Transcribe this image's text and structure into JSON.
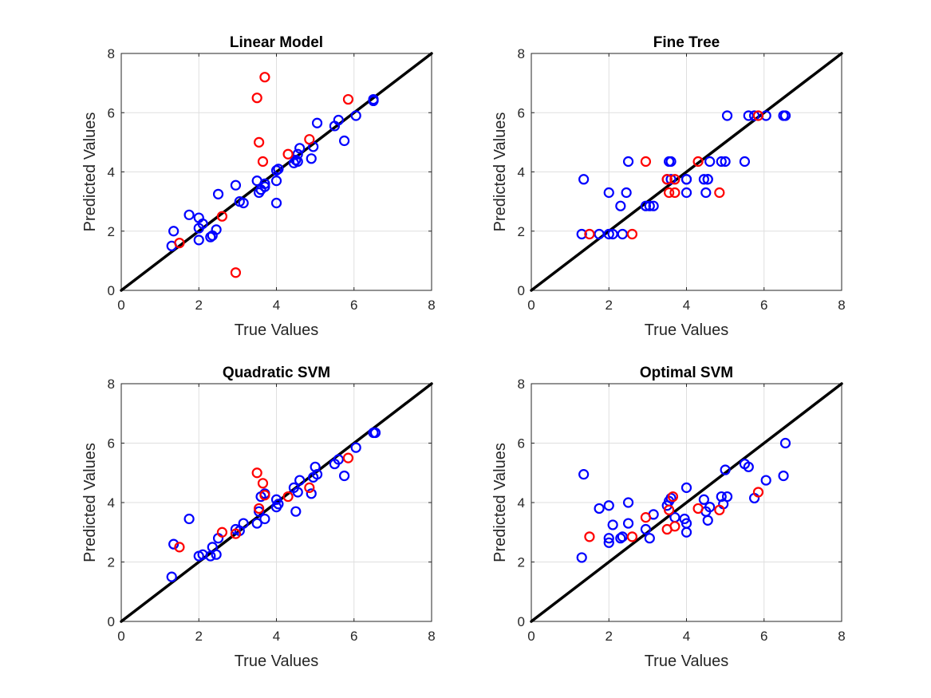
{
  "chart_data": [
    {
      "type": "scatter",
      "title": "Linear Model",
      "xlabel": "True Values",
      "ylabel": "Predicted Values",
      "xlim": [
        0,
        8
      ],
      "ylim": [
        0,
        8
      ],
      "xticks": [
        "0",
        "2",
        "4",
        "6",
        "8"
      ],
      "yticks": [
        "0",
        "2",
        "4",
        "6",
        "8"
      ],
      "grid": true,
      "reference_line": {
        "x": [
          0,
          8
        ],
        "y": [
          0,
          8
        ],
        "color": "#000000"
      },
      "series": [
        {
          "color": "#0000ff",
          "points": [
            [
              1.3,
              1.5
            ],
            [
              1.35,
              2.0
            ],
            [
              1.75,
              2.55
            ],
            [
              2.0,
              2.45
            ],
            [
              2.0,
              2.1
            ],
            [
              2.0,
              1.7
            ],
            [
              2.1,
              2.25
            ],
            [
              2.3,
              1.8
            ],
            [
              2.35,
              1.85
            ],
            [
              2.45,
              2.05
            ],
            [
              2.5,
              3.25
            ],
            [
              2.95,
              3.55
            ],
            [
              3.05,
              3.0
            ],
            [
              3.15,
              2.95
            ],
            [
              3.5,
              3.7
            ],
            [
              3.55,
              3.3
            ],
            [
              3.6,
              3.4
            ],
            [
              3.7,
              3.5
            ],
            [
              3.7,
              3.6
            ],
            [
              4.0,
              4.05
            ],
            [
              4.05,
              4.1
            ],
            [
              4.0,
              3.7
            ],
            [
              4.0,
              2.95
            ],
            [
              4.45,
              4.3
            ],
            [
              4.5,
              4.4
            ],
            [
              4.55,
              4.35
            ],
            [
              4.55,
              4.6
            ],
            [
              4.6,
              4.8
            ],
            [
              4.9,
              4.45
            ],
            [
              4.95,
              4.85
            ],
            [
              5.05,
              5.65
            ],
            [
              5.5,
              5.55
            ],
            [
              5.6,
              5.75
            ],
            [
              5.75,
              5.05
            ],
            [
              6.05,
              5.9
            ],
            [
              6.5,
              6.45
            ],
            [
              6.5,
              6.4
            ]
          ]
        },
        {
          "color": "#ff0000",
          "points": [
            [
              1.5,
              1.6
            ],
            [
              2.6,
              2.5
            ],
            [
              2.95,
              0.6
            ],
            [
              3.5,
              6.5
            ],
            [
              3.55,
              5.0
            ],
            [
              3.65,
              4.35
            ],
            [
              3.7,
              7.2
            ],
            [
              4.3,
              4.6
            ],
            [
              4.85,
              5.1
            ],
            [
              5.85,
              6.45
            ]
          ]
        }
      ]
    },
    {
      "type": "scatter",
      "title": "Fine Tree",
      "xlabel": "True Values",
      "ylabel": "Predicted Values",
      "xlim": [
        0,
        8
      ],
      "ylim": [
        0,
        8
      ],
      "xticks": [
        "0",
        "2",
        "4",
        "6",
        "8"
      ],
      "yticks": [
        "0",
        "2",
        "4",
        "6",
        "8"
      ],
      "grid": true,
      "reference_line": {
        "x": [
          0,
          8
        ],
        "y": [
          0,
          8
        ],
        "color": "#000000"
      },
      "series": [
        {
          "color": "#0000ff",
          "points": [
            [
              1.3,
              1.9
            ],
            [
              1.35,
              3.75
            ],
            [
              1.75,
              1.9
            ],
            [
              2.0,
              3.3
            ],
            [
              2.0,
              1.9
            ],
            [
              2.1,
              1.9
            ],
            [
              2.3,
              2.85
            ],
            [
              2.35,
              1.9
            ],
            [
              2.45,
              3.3
            ],
            [
              2.5,
              4.35
            ],
            [
              2.95,
              2.85
            ],
            [
              3.05,
              2.85
            ],
            [
              3.15,
              2.85
            ],
            [
              3.5,
              3.75
            ],
            [
              3.55,
              4.35
            ],
            [
              3.6,
              4.35
            ],
            [
              3.6,
              3.75
            ],
            [
              4.0,
              3.75
            ],
            [
              4.0,
              3.3
            ],
            [
              4.0,
              3.75
            ],
            [
              4.45,
              3.75
            ],
            [
              4.5,
              3.3
            ],
            [
              4.55,
              3.75
            ],
            [
              4.55,
              3.75
            ],
            [
              4.6,
              4.35
            ],
            [
              4.9,
              4.35
            ],
            [
              5.0,
              4.35
            ],
            [
              5.05,
              5.9
            ],
            [
              5.5,
              4.35
            ],
            [
              5.6,
              5.9
            ],
            [
              5.75,
              5.9
            ],
            [
              6.05,
              5.9
            ],
            [
              6.5,
              5.9
            ],
            [
              6.55,
              5.9
            ]
          ]
        },
        {
          "color": "#ff0000",
          "points": [
            [
              1.5,
              1.9
            ],
            [
              2.6,
              1.9
            ],
            [
              2.95,
              4.35
            ],
            [
              3.5,
              3.75
            ],
            [
              3.55,
              3.3
            ],
            [
              3.7,
              3.75
            ],
            [
              3.7,
              3.3
            ],
            [
              4.3,
              4.35
            ],
            [
              4.85,
              3.3
            ],
            [
              5.85,
              5.9
            ]
          ]
        }
      ]
    },
    {
      "type": "scatter",
      "title": "Quadratic SVM",
      "xlabel": "True Values",
      "ylabel": "Predicted Values",
      "xlim": [
        0,
        8
      ],
      "ylim": [
        0,
        8
      ],
      "xticks": [
        "0",
        "2",
        "4",
        "6",
        "8"
      ],
      "yticks": [
        "0",
        "2",
        "4",
        "6",
        "8"
      ],
      "grid": true,
      "reference_line": {
        "x": [
          0,
          8
        ],
        "y": [
          0,
          8
        ],
        "color": "#000000"
      },
      "series": [
        {
          "color": "#0000ff",
          "points": [
            [
              1.3,
              1.5
            ],
            [
              1.35,
              2.6
            ],
            [
              1.75,
              3.45
            ],
            [
              2.0,
              2.2
            ],
            [
              2.1,
              2.25
            ],
            [
              2.3,
              2.2
            ],
            [
              2.35,
              2.5
            ],
            [
              2.45,
              2.25
            ],
            [
              2.5,
              2.8
            ],
            [
              2.95,
              3.1
            ],
            [
              3.05,
              3.05
            ],
            [
              3.15,
              3.3
            ],
            [
              3.5,
              3.3
            ],
            [
              3.55,
              3.7
            ],
            [
              3.6,
              4.2
            ],
            [
              3.7,
              3.45
            ],
            [
              3.7,
              4.3
            ],
            [
              4.0,
              3.85
            ],
            [
              4.0,
              4.1
            ],
            [
              4.05,
              3.95
            ],
            [
              4.45,
              4.5
            ],
            [
              4.5,
              3.7
            ],
            [
              4.55,
              4.35
            ],
            [
              4.6,
              4.75
            ],
            [
              4.9,
              4.3
            ],
            [
              4.95,
              4.85
            ],
            [
              5.0,
              5.2
            ],
            [
              5.05,
              4.95
            ],
            [
              5.5,
              5.3
            ],
            [
              5.6,
              5.45
            ],
            [
              5.75,
              4.9
            ],
            [
              6.05,
              5.85
            ],
            [
              6.5,
              6.35
            ],
            [
              6.55,
              6.35
            ]
          ]
        },
        {
          "color": "#ff0000",
          "points": [
            [
              1.5,
              2.5
            ],
            [
              2.6,
              3.0
            ],
            [
              2.95,
              2.95
            ],
            [
              3.5,
              5.0
            ],
            [
              3.55,
              3.8
            ],
            [
              3.65,
              4.65
            ],
            [
              3.7,
              4.25
            ],
            [
              4.3,
              4.2
            ],
            [
              4.85,
              4.5
            ],
            [
              5.85,
              5.5
            ]
          ]
        }
      ]
    },
    {
      "type": "scatter",
      "title": "Optimal SVM",
      "xlabel": "True Values",
      "ylabel": "Predicted Values",
      "xlim": [
        0,
        8
      ],
      "ylim": [
        0,
        8
      ],
      "xticks": [
        "0",
        "2",
        "4",
        "6",
        "8"
      ],
      "yticks": [
        "0",
        "2",
        "4",
        "6",
        "8"
      ],
      "grid": true,
      "reference_line": {
        "x": [
          0,
          8
        ],
        "y": [
          0,
          8
        ],
        "color": "#000000"
      },
      "series": [
        {
          "color": "#0000ff",
          "points": [
            [
              1.3,
              2.15
            ],
            [
              1.35,
              4.95
            ],
            [
              1.75,
              3.8
            ],
            [
              2.0,
              3.9
            ],
            [
              2.0,
              2.8
            ],
            [
              2.0,
              2.65
            ],
            [
              2.1,
              3.25
            ],
            [
              2.3,
              2.8
            ],
            [
              2.35,
              2.85
            ],
            [
              2.5,
              4.0
            ],
            [
              2.5,
              3.3
            ],
            [
              2.95,
              3.1
            ],
            [
              3.05,
              2.8
            ],
            [
              3.15,
              3.6
            ],
            [
              3.5,
              3.9
            ],
            [
              3.55,
              4.05
            ],
            [
              3.6,
              4.15
            ],
            [
              3.7,
              3.5
            ],
            [
              3.95,
              3.45
            ],
            [
              4.0,
              4.5
            ],
            [
              4.0,
              3.3
            ],
            [
              4.0,
              3.0
            ],
            [
              4.45,
              4.1
            ],
            [
              4.5,
              3.7
            ],
            [
              4.55,
              3.4
            ],
            [
              4.6,
              3.85
            ],
            [
              4.9,
              4.2
            ],
            [
              4.95,
              3.95
            ],
            [
              5.0,
              5.1
            ],
            [
              5.05,
              4.2
            ],
            [
              5.5,
              5.3
            ],
            [
              5.6,
              5.2
            ],
            [
              5.75,
              4.15
            ],
            [
              6.05,
              4.75
            ],
            [
              6.5,
              4.9
            ],
            [
              6.55,
              6.0
            ]
          ]
        },
        {
          "color": "#ff0000",
          "points": [
            [
              1.5,
              2.85
            ],
            [
              2.6,
              2.85
            ],
            [
              2.95,
              3.5
            ],
            [
              3.5,
              3.1
            ],
            [
              3.55,
              3.75
            ],
            [
              3.65,
              4.2
            ],
            [
              3.7,
              3.2
            ],
            [
              4.3,
              3.8
            ],
            [
              4.85,
              3.75
            ],
            [
              5.85,
              4.35
            ]
          ]
        }
      ]
    }
  ]
}
